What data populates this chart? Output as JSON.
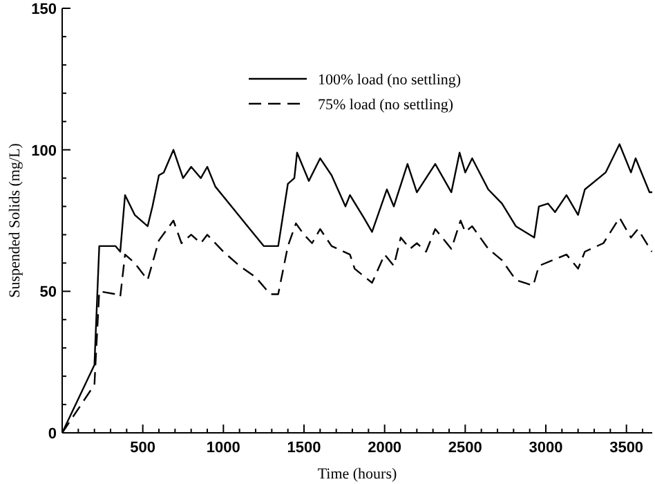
{
  "chart_data": {
    "type": "line",
    "xlabel": "Time (hours)",
    "ylabel": "Suspended Solids (mg/L)",
    "xlim": [
      0,
      3660
    ],
    "ylim": [
      0,
      150
    ],
    "xticks": [
      {
        "value": 100,
        "label": null
      },
      {
        "value": 200,
        "label": null
      },
      {
        "value": 300,
        "label": null
      },
      {
        "value": 400,
        "label": null
      },
      500,
      {
        "value": 600,
        "label": null
      },
      {
        "value": 700,
        "label": null
      },
      {
        "value": 800,
        "label": null
      },
      {
        "value": 900,
        "label": null
      },
      1000,
      {
        "value": 1100,
        "label": null
      },
      {
        "value": 1200,
        "label": null
      },
      {
        "value": 1300,
        "label": null
      },
      {
        "value": 1400,
        "label": null
      },
      1500,
      {
        "value": 1600,
        "label": null
      },
      {
        "value": 1700,
        "label": null
      },
      {
        "value": 1800,
        "label": null
      },
      {
        "value": 1900,
        "label": null
      },
      2000,
      {
        "value": 2100,
        "label": null
      },
      {
        "value": 2200,
        "label": null
      },
      {
        "value": 2300,
        "label": null
      },
      {
        "value": 2400,
        "label": null
      },
      2500,
      {
        "value": 2600,
        "label": null
      },
      {
        "value": 2700,
        "label": null
      },
      {
        "value": 2800,
        "label": null
      },
      {
        "value": 2900,
        "label": null
      },
      3000,
      {
        "value": 3100,
        "label": null
      },
      {
        "value": 3200,
        "label": null
      },
      {
        "value": 3300,
        "label": null
      },
      {
        "value": 3400,
        "label": null
      },
      3500,
      {
        "value": 3600,
        "label": null
      }
    ],
    "yticks": [
      0,
      {
        "value": 10,
        "label": null
      },
      {
        "value": 20,
        "label": null
      },
      {
        "value": 30,
        "label": null
      },
      {
        "value": 40,
        "label": null
      },
      50,
      {
        "value": 60,
        "label": null
      },
      {
        "value": 70,
        "label": null
      },
      {
        "value": 80,
        "label": null
      },
      {
        "value": 90,
        "label": null
      },
      100,
      {
        "value": 110,
        "label": null
      },
      {
        "value": 120,
        "label": null
      },
      {
        "value": 130,
        "label": null
      },
      {
        "value": 140,
        "label": null
      },
      150
    ],
    "legend": "top",
    "grid": false,
    "series": [
      {
        "name": "100% load (no settling)",
        "color": "#000000",
        "line_style": "solid",
        "x": [
          0,
          200,
          230,
          330,
          360,
          390,
          450,
          530,
          560,
          600,
          630,
          690,
          750,
          800,
          860,
          900,
          950,
          1050,
          1150,
          1250,
          1340,
          1400,
          1440,
          1457,
          1530,
          1600,
          1671,
          1757,
          1785,
          1871,
          1922,
          2014,
          2057,
          2142,
          2200,
          2314,
          2414,
          2465,
          2500,
          2543,
          2643,
          2728,
          2814,
          2928,
          2957,
          3014,
          3057,
          3128,
          3200,
          3242,
          3328,
          3371,
          3457,
          3528,
          3557,
          3643,
          3660
        ],
        "values": [
          0,
          24,
          66,
          66,
          64,
          84,
          77,
          73,
          80,
          91,
          92,
          100,
          90,
          94,
          90,
          94,
          87,
          80,
          73,
          66,
          66,
          88,
          90,
          99,
          89,
          97,
          91,
          80,
          84,
          76,
          71,
          86,
          80,
          95,
          85,
          95,
          85,
          99,
          92,
          97,
          86,
          81,
          73,
          69,
          80,
          81,
          78,
          84,
          77,
          86,
          90,
          92,
          102,
          92,
          97,
          85,
          85
        ]
      },
      {
        "name": "75% load (no settling)",
        "color": "#000000",
        "line_style": "dashed",
        "x": [
          0,
          200,
          230,
          330,
          360,
          390,
          450,
          530,
          570,
          600,
          690,
          740,
          800,
          860,
          900,
          1000,
          1100,
          1200,
          1290,
          1340,
          1400,
          1450,
          1500,
          1550,
          1600,
          1671,
          1785,
          1814,
          1922,
          2000,
          2057,
          2100,
          2157,
          2200,
          2257,
          2314,
          2414,
          2471,
          2500,
          2543,
          2643,
          2728,
          2814,
          2922,
          2957,
          3042,
          3128,
          3200,
          3242,
          3357,
          3457,
          3528,
          3571,
          3657
        ],
        "values": [
          0,
          17,
          50,
          49,
          48,
          63,
          60,
          54,
          62,
          68,
          75,
          67,
          70,
          67,
          70,
          64,
          59,
          55,
          49,
          49,
          66,
          74,
          70,
          67,
          72,
          66,
          63,
          58,
          53,
          63,
          59,
          69,
          65,
          67,
          64,
          72,
          65,
          75,
          71,
          73,
          65,
          61,
          54,
          52,
          59,
          61,
          63,
          58,
          64,
          67,
          76,
          69,
          72,
          64
        ]
      }
    ]
  }
}
